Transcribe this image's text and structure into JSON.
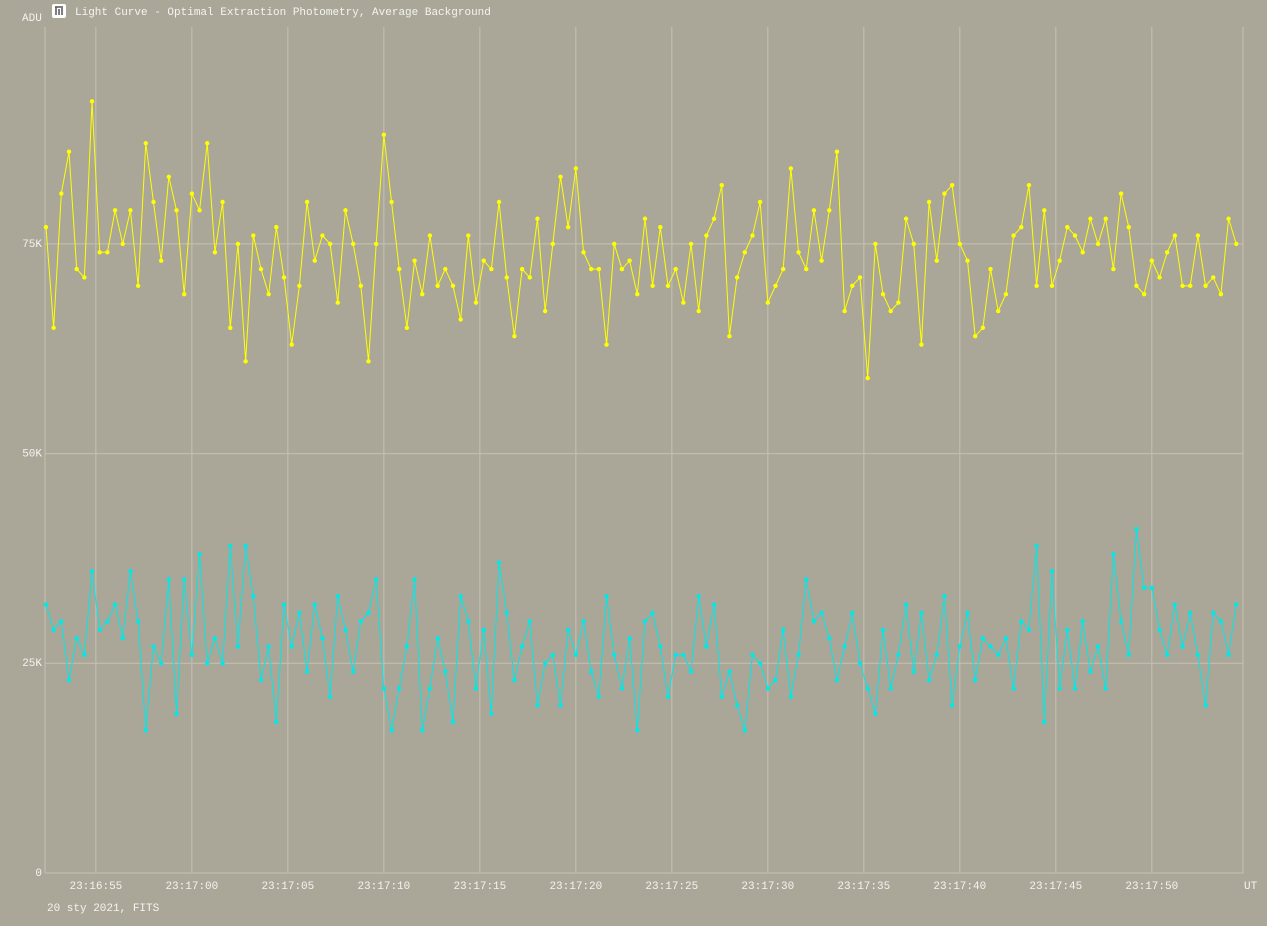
{
  "chart_data": {
    "type": "line",
    "title": "Light Curve - Optimal Extraction Photometry, Average Background",
    "y_label": "ADU",
    "x_label": "UT",
    "footnote": "20 sty 2021, FITS",
    "xlim": [
      52.35,
      114.75
    ],
    "xticks": [
      {
        "value": 55,
        "label": "23:16:55"
      },
      {
        "value": 60,
        "label": "23:17:00"
      },
      {
        "value": 65,
        "label": "23:17:05"
      },
      {
        "value": 70,
        "label": "23:17:10"
      },
      {
        "value": 75,
        "label": "23:17:15"
      },
      {
        "value": 80,
        "label": "23:17:20"
      },
      {
        "value": 85,
        "label": "23:17:25"
      },
      {
        "value": 90,
        "label": "23:17:30"
      },
      {
        "value": 95,
        "label": "23:17:35"
      },
      {
        "value": 100,
        "label": "23:17:40"
      },
      {
        "value": 105,
        "label": "23:17:45"
      },
      {
        "value": 110,
        "label": "23:17:50"
      }
    ],
    "ylim": [
      0,
      100860
    ],
    "yticks": [
      0,
      {
        "value": 25000,
        "label": "25K"
      },
      {
        "value": 50000,
        "label": "50K"
      },
      {
        "value": 75000,
        "label": "75K"
      }
    ],
    "grid": true,
    "x": [
      52.4,
      52.8,
      53.2,
      53.6,
      54,
      54.4,
      54.8,
      55.2,
      55.6,
      56,
      56.4,
      56.8,
      57.2,
      57.6,
      58,
      58.4,
      58.8,
      59.2,
      59.6,
      60,
      60.4,
      60.8,
      61.2,
      61.6,
      62,
      62.4,
      62.8,
      63.2,
      63.6,
      64,
      64.4,
      64.8,
      65.2,
      65.6,
      66,
      66.4,
      66.8,
      67.2,
      67.6,
      68,
      68.4,
      68.8,
      69.2,
      69.6,
      70,
      70.4,
      70.8,
      71.2,
      71.6,
      72,
      72.4,
      72.8,
      73.2,
      73.6,
      74,
      74.4,
      74.8,
      75.2,
      75.6,
      76,
      76.4,
      76.8,
      77.2,
      77.6,
      78,
      78.4,
      78.8,
      79.2,
      79.6,
      80,
      80.4,
      80.8,
      81.2,
      81.6,
      82,
      82.4,
      82.8,
      83.2,
      83.6,
      84,
      84.4,
      84.8,
      85.2,
      85.6,
      86,
      86.4,
      86.8,
      87.2,
      87.6,
      88,
      88.4,
      88.8,
      89.2,
      89.6,
      90,
      90.4,
      90.8,
      91.2,
      91.6,
      92,
      92.4,
      92.8,
      93.2,
      93.6,
      94,
      94.4,
      94.8,
      95.2,
      95.6,
      96,
      96.4,
      96.8,
      97.2,
      97.6,
      98,
      98.4,
      98.8,
      99.2,
      99.6,
      100,
      100.4,
      100.8,
      101.2,
      101.6,
      102,
      102.4,
      102.8,
      103.2,
      103.6,
      104,
      104.4,
      104.8,
      105.2,
      105.6,
      106,
      106.4,
      106.8,
      107.2,
      107.6,
      108,
      108.4,
      108.8,
      109.2,
      109.6,
      110,
      110.4,
      110.8,
      111.2,
      111.6,
      112,
      112.4,
      112.8,
      113.2,
      113.6,
      114,
      114.4
    ],
    "series": [
      {
        "color": "#ffff00",
        "values": [
          77000,
          65000,
          81000,
          86000,
          72000,
          71000,
          92000,
          74000,
          74000,
          79000,
          75000,
          79000,
          70000,
          87000,
          80000,
          73000,
          83000,
          79000,
          69000,
          81000,
          79000,
          87000,
          74000,
          80000,
          65000,
          75000,
          61000,
          76000,
          72000,
          69000,
          77000,
          71000,
          63000,
          70000,
          80000,
          73000,
          76000,
          75000,
          68000,
          79000,
          75000,
          70000,
          61000,
          75000,
          88000,
          80000,
          72000,
          65000,
          73000,
          69000,
          76000,
          70000,
          72000,
          70000,
          66000,
          76000,
          68000,
          73000,
          72000,
          80000,
          71000,
          64000,
          72000,
          71000,
          78000,
          67000,
          75000,
          83000,
          77000,
          84000,
          74000,
          72000,
          72000,
          63000,
          75000,
          72000,
          73000,
          69000,
          78000,
          70000,
          77000,
          70000,
          72000,
          68000,
          75000,
          67000,
          76000,
          78000,
          82000,
          64000,
          71000,
          74000,
          76000,
          80000,
          68000,
          70000,
          72000,
          84000,
          74000,
          72000,
          79000,
          73000,
          79000,
          86000,
          67000,
          70000,
          71000,
          59000,
          75000,
          69000,
          67000,
          68000,
          78000,
          75000,
          63000,
          80000,
          73000,
          81000,
          82000,
          75000,
          73000,
          64000,
          65000,
          72000,
          67000,
          69000,
          76000,
          77000,
          82000,
          70000,
          79000,
          70000,
          73000,
          77000,
          76000,
          74000,
          78000,
          75000,
          78000,
          72000,
          81000,
          77000,
          70000,
          69000,
          73000,
          71000,
          74000,
          76000,
          70000,
          70000,
          76000,
          70000,
          71000,
          69000,
          78000,
          75000
        ]
      },
      {
        "color": "#00e8e8",
        "values": [
          32000,
          29000,
          30000,
          23000,
          28000,
          26000,
          36000,
          29000,
          30000,
          32000,
          28000,
          36000,
          30000,
          17000,
          27000,
          25000,
          35000,
          19000,
          35000,
          26000,
          38000,
          25000,
          28000,
          25000,
          39000,
          27000,
          39000,
          33000,
          23000,
          27000,
          18000,
          32000,
          27000,
          31000,
          24000,
          32000,
          28000,
          21000,
          33000,
          29000,
          24000,
          30000,
          31000,
          35000,
          22000,
          17000,
          22000,
          27000,
          35000,
          17000,
          22000,
          28000,
          24000,
          18000,
          33000,
          30000,
          22000,
          29000,
          19000,
          37000,
          31000,
          23000,
          27000,
          30000,
          20000,
          25000,
          26000,
          20000,
          29000,
          26000,
          30000,
          24000,
          21000,
          33000,
          26000,
          22000,
          28000,
          17000,
          30000,
          31000,
          27000,
          21000,
          26000,
          26000,
          24000,
          33000,
          27000,
          32000,
          21000,
          24000,
          20000,
          17000,
          26000,
          25000,
          22000,
          23000,
          29000,
          21000,
          26000,
          35000,
          30000,
          31000,
          28000,
          23000,
          27000,
          31000,
          25000,
          22000,
          19000,
          29000,
          22000,
          26000,
          32000,
          24000,
          31000,
          23000,
          26000,
          33000,
          20000,
          27000,
          31000,
          23000,
          28000,
          27000,
          26000,
          28000,
          22000,
          30000,
          29000,
          39000,
          18000,
          36000,
          22000,
          29000,
          22000,
          30000,
          24000,
          27000,
          22000,
          38000,
          30000,
          26000,
          41000,
          34000,
          34000,
          29000,
          26000,
          32000,
          27000,
          31000,
          26000,
          20000,
          31000,
          30000,
          26000,
          32000
        ]
      }
    ]
  }
}
